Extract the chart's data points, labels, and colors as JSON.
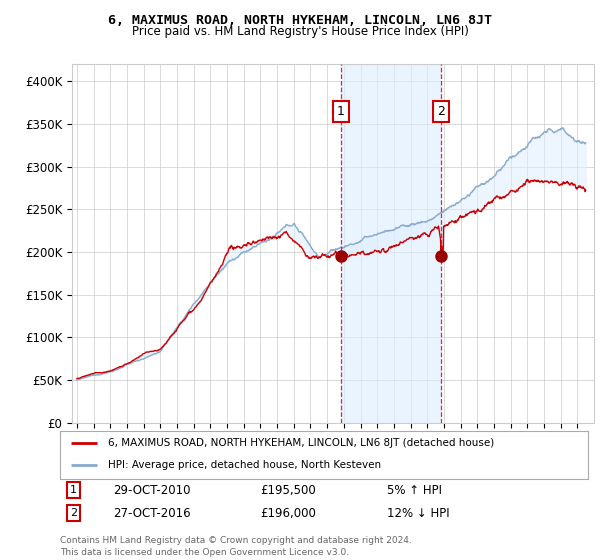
{
  "title": "6, MAXIMUS ROAD, NORTH HYKEHAM, LINCOLN, LN6 8JT",
  "subtitle": "Price paid vs. HM Land Registry's House Price Index (HPI)",
  "ylabel_ticks": [
    "£0",
    "£50K",
    "£100K",
    "£150K",
    "£200K",
    "£250K",
    "£300K",
    "£350K",
    "£400K"
  ],
  "ylim": [
    0,
    420000
  ],
  "xlim_start": 1995,
  "xlim_end": 2026,
  "sale1_x": 2010.83,
  "sale1_y": 195500,
  "sale1_label": "1",
  "sale2_x": 2016.83,
  "sale2_y": 196000,
  "sale2_label": "2",
  "marker1_date": "29-OCT-2010",
  "marker1_price": "£195,500",
  "marker1_hpi": "5% ↑ HPI",
  "marker2_date": "27-OCT-2016",
  "marker2_price": "£196,000",
  "marker2_hpi": "12% ↓ HPI",
  "legend_line1": "6, MAXIMUS ROAD, NORTH HYKEHAM, LINCOLN, LN6 8JT (detached house)",
  "legend_line2": "HPI: Average price, detached house, North Kesteven",
  "footer": "Contains HM Land Registry data © Crown copyright and database right 2024.\nThis data is licensed under the Open Government Licence v3.0.",
  "line_red": "#cc0000",
  "line_blue": "#88aacc",
  "shade_color": "#ddeeff",
  "background_color": "#ffffff",
  "grid_color": "#cccccc"
}
